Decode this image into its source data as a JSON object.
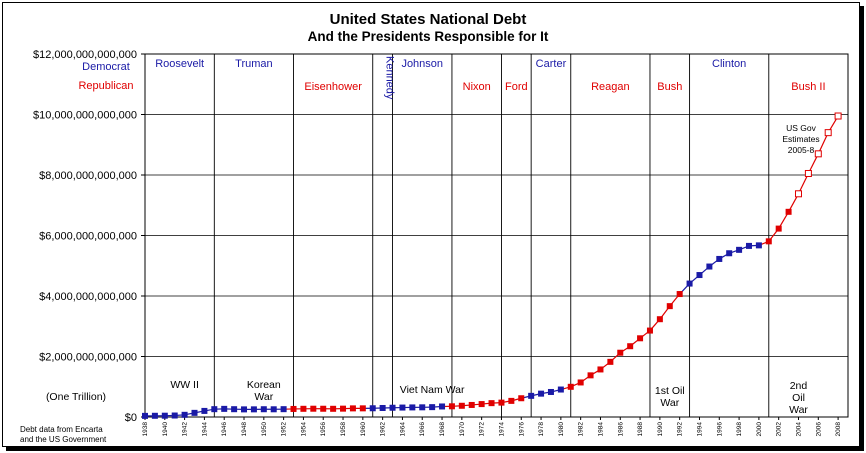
{
  "title": "United States National Debt",
  "subtitle": "And the Presidents Responsible for It",
  "legend": {
    "democrat": "Democrat",
    "republican": "Republican"
  },
  "colors": {
    "democrat": "#1a1aa6",
    "republican": "#e00000",
    "estimate": "#e00000"
  },
  "source_note": [
    "Debt data from Encarta",
    "and the US Government"
  ],
  "one_trillion_note": "(One Trillion)",
  "estimate_note": [
    "US Gov",
    "Estimates",
    "2005-8"
  ],
  "chart_data": {
    "type": "line",
    "title": "United States National Debt",
    "subtitle": "And the Presidents Responsible for It",
    "ylim": [
      0,
      12000000000000
    ],
    "xlim": [
      1938,
      2009
    ],
    "y_ticks": [
      {
        "value": 0,
        "label": "$0"
      },
      {
        "value": 2000000000000,
        "label": "$2,000,000,000,000"
      },
      {
        "value": 4000000000000,
        "label": "$4,000,000,000,000"
      },
      {
        "value": 6000000000000,
        "label": "$6,000,000,000,000"
      },
      {
        "value": 8000000000000,
        "label": "$8,000,000,000,000"
      },
      {
        "value": 10000000000000,
        "label": "$10,000,000,000,000"
      },
      {
        "value": 12000000000000,
        "label": "$12,000,000,000,000"
      }
    ],
    "x_tick_labels": [
      "1938",
      "1940",
      "1942",
      "1944",
      "1946",
      "1948",
      "1950",
      "1952",
      "1954",
      "1956",
      "1958",
      "1960",
      "1962",
      "1964",
      "1966",
      "1968",
      "1970",
      "1972",
      "1974",
      "1976",
      "1978",
      "1980",
      "1982",
      "1984",
      "1986",
      "1988",
      "1990",
      "1992",
      "1994",
      "1996",
      "1998",
      "2000",
      "2002",
      "2004",
      "2006",
      "2008"
    ],
    "grid": true,
    "series": [
      {
        "points": [
          {
            "x": 1938,
            "y": 37000000000,
            "party": "D"
          },
          {
            "x": 1939,
            "y": 40000000000,
            "party": "D"
          },
          {
            "x": 1940,
            "y": 43000000000,
            "party": "D"
          },
          {
            "x": 1941,
            "y": 49000000000,
            "party": "D"
          },
          {
            "x": 1942,
            "y": 72000000000,
            "party": "D"
          },
          {
            "x": 1943,
            "y": 137000000000,
            "party": "D"
          },
          {
            "x": 1944,
            "y": 201000000000,
            "party": "D"
          },
          {
            "x": 1945,
            "y": 259000000000,
            "party": "D"
          },
          {
            "x": 1946,
            "y": 269000000000,
            "party": "D"
          },
          {
            "x": 1947,
            "y": 258000000000,
            "party": "D"
          },
          {
            "x": 1948,
            "y": 252000000000,
            "party": "D"
          },
          {
            "x": 1949,
            "y": 253000000000,
            "party": "D"
          },
          {
            "x": 1950,
            "y": 257000000000,
            "party": "D"
          },
          {
            "x": 1951,
            "y": 255000000000,
            "party": "D"
          },
          {
            "x": 1952,
            "y": 259000000000,
            "party": "D"
          },
          {
            "x": 1953,
            "y": 266000000000,
            "party": "R"
          },
          {
            "x": 1954,
            "y": 271000000000,
            "party": "R"
          },
          {
            "x": 1955,
            "y": 274000000000,
            "party": "R"
          },
          {
            "x": 1956,
            "y": 273000000000,
            "party": "R"
          },
          {
            "x": 1957,
            "y": 271000000000,
            "party": "R"
          },
          {
            "x": 1958,
            "y": 276000000000,
            "party": "R"
          },
          {
            "x": 1959,
            "y": 285000000000,
            "party": "R"
          },
          {
            "x": 1960,
            "y": 286000000000,
            "party": "R"
          },
          {
            "x": 1961,
            "y": 289000000000,
            "party": "D"
          },
          {
            "x": 1962,
            "y": 298000000000,
            "party": "D"
          },
          {
            "x": 1963,
            "y": 306000000000,
            "party": "D"
          },
          {
            "x": 1964,
            "y": 312000000000,
            "party": "D"
          },
          {
            "x": 1965,
            "y": 317000000000,
            "party": "D"
          },
          {
            "x": 1966,
            "y": 320000000000,
            "party": "D"
          },
          {
            "x": 1967,
            "y": 326000000000,
            "party": "D"
          },
          {
            "x": 1968,
            "y": 348000000000,
            "party": "D"
          },
          {
            "x": 1969,
            "y": 354000000000,
            "party": "R"
          },
          {
            "x": 1970,
            "y": 371000000000,
            "party": "R"
          },
          {
            "x": 1971,
            "y": 398000000000,
            "party": "R"
          },
          {
            "x": 1972,
            "y": 427000000000,
            "party": "R"
          },
          {
            "x": 1973,
            "y": 458000000000,
            "party": "R"
          },
          {
            "x": 1974,
            "y": 475000000000,
            "party": "R"
          },
          {
            "x": 1975,
            "y": 533000000000,
            "party": "R"
          },
          {
            "x": 1976,
            "y": 620000000000,
            "party": "R"
          },
          {
            "x": 1977,
            "y": 699000000000,
            "party": "D"
          },
          {
            "x": 1978,
            "y": 772000000000,
            "party": "D"
          },
          {
            "x": 1979,
            "y": 827000000000,
            "party": "D"
          },
          {
            "x": 1980,
            "y": 908000000000,
            "party": "D"
          },
          {
            "x": 1981,
            "y": 998000000000,
            "party": "R"
          },
          {
            "x": 1982,
            "y": 1142000000000,
            "party": "R"
          },
          {
            "x": 1983,
            "y": 1377000000000,
            "party": "R"
          },
          {
            "x": 1984,
            "y": 1572000000000,
            "party": "R"
          },
          {
            "x": 1985,
            "y": 1823000000000,
            "party": "R"
          },
          {
            "x": 1986,
            "y": 2125000000000,
            "party": "R"
          },
          {
            "x": 1987,
            "y": 2340000000000,
            "party": "R"
          },
          {
            "x": 1988,
            "y": 2602000000000,
            "party": "R"
          },
          {
            "x": 1989,
            "y": 2857000000000,
            "party": "R"
          },
          {
            "x": 1990,
            "y": 3233000000000,
            "party": "R"
          },
          {
            "x": 1991,
            "y": 3665000000000,
            "party": "R"
          },
          {
            "x": 1992,
            "y": 4065000000000,
            "party": "R"
          },
          {
            "x": 1993,
            "y": 4411000000000,
            "party": "D"
          },
          {
            "x": 1994,
            "y": 4693000000000,
            "party": "D"
          },
          {
            "x": 1995,
            "y": 4974000000000,
            "party": "D"
          },
          {
            "x": 1996,
            "y": 5225000000000,
            "party": "D"
          },
          {
            "x": 1997,
            "y": 5413000000000,
            "party": "D"
          },
          {
            "x": 1998,
            "y": 5526000000000,
            "party": "D"
          },
          {
            "x": 1999,
            "y": 5656000000000,
            "party": "D"
          },
          {
            "x": 2000,
            "y": 5674000000000,
            "party": "D"
          },
          {
            "x": 2001,
            "y": 5807000000000,
            "party": "R"
          },
          {
            "x": 2002,
            "y": 6228000000000,
            "party": "R"
          },
          {
            "x": 2003,
            "y": 6783000000000,
            "party": "R"
          },
          {
            "x": 2004,
            "y": 7379000000000,
            "party": "R",
            "estimate": true
          },
          {
            "x": 2005,
            "y": 8050000000000,
            "party": "R",
            "estimate": true
          },
          {
            "x": 2006,
            "y": 8700000000000,
            "party": "R",
            "estimate": true
          },
          {
            "x": 2007,
            "y": 9400000000000,
            "party": "R",
            "estimate": true
          },
          {
            "x": 2008,
            "y": 9950000000000,
            "party": "R",
            "estimate": true
          }
        ]
      }
    ],
    "president_terms": [
      {
        "name": "Roosevelt",
        "party": "D",
        "start": 1938,
        "end": 1945
      },
      {
        "name": "Truman",
        "party": "D",
        "start": 1945,
        "end": 1953
      },
      {
        "name": "Eisenhower",
        "party": "R",
        "start": 1953,
        "end": 1961
      },
      {
        "name": "Kennedy",
        "party": "D",
        "start": 1961,
        "end": 1963,
        "vertical": true
      },
      {
        "name": "Johnson",
        "party": "D",
        "start": 1963,
        "end": 1969
      },
      {
        "name": "Nixon",
        "party": "R",
        "start": 1969,
        "end": 1974
      },
      {
        "name": "Ford",
        "party": "R",
        "start": 1974,
        "end": 1977
      },
      {
        "name": "Carter",
        "party": "D",
        "start": 1977,
        "end": 1981
      },
      {
        "name": "Reagan",
        "party": "R",
        "start": 1981,
        "end": 1989
      },
      {
        "name": "Bush",
        "party": "R",
        "start": 1989,
        "end": 1993
      },
      {
        "name": "Clinton",
        "party": "D",
        "start": 1993,
        "end": 2001
      },
      {
        "name": "Bush II",
        "party": "R",
        "start": 2001,
        "end": 2009
      }
    ],
    "annotations": [
      {
        "lines": [
          "WW II"
        ],
        "x": 1942
      },
      {
        "lines": [
          "Korean",
          "War"
        ],
        "x": 1950
      },
      {
        "lines": [
          "Viet Nam War"
        ],
        "x": 1967
      },
      {
        "lines": [
          "1st Oil",
          "War"
        ],
        "x": 1991
      },
      {
        "lines": [
          "2nd",
          "Oil",
          "War"
        ],
        "x": 2004
      }
    ]
  }
}
